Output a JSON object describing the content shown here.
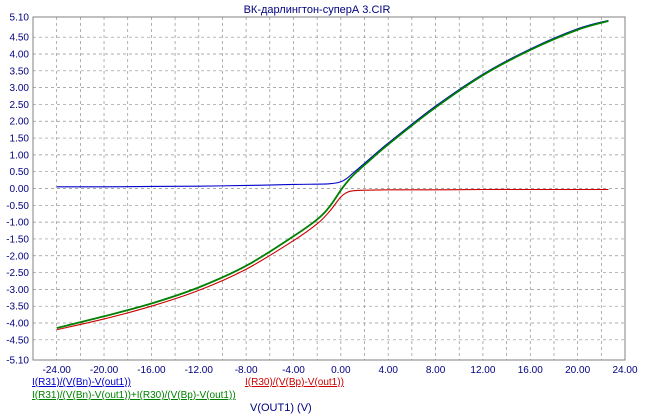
{
  "chart_data": {
    "type": "line",
    "title": "ВК-дарлингтон-суперА 3.CIR",
    "xlabel": "V(OUT1) (V)",
    "ylabel": "",
    "xlim": [
      -26,
      24
    ],
    "ylim": [
      -5.1,
      5.1
    ],
    "x_ticks": [
      "-24.00",
      "-20.00",
      "-16.00",
      "-12.00",
      "-8.00",
      "-4.00",
      "0.00",
      "4.00",
      "8.00",
      "12.00",
      "16.00",
      "20.00",
      "24.00"
    ],
    "x_tick_values": [
      -24,
      -20,
      -16,
      -12,
      -8,
      -4,
      0,
      4,
      8,
      12,
      16,
      20,
      24
    ],
    "y_ticks": [
      "5.10",
      "4.50",
      "4.00",
      "3.50",
      "3.00",
      "2.50",
      "2.00",
      "1.50",
      "1.00",
      "0.50",
      "0.00",
      "-0.50",
      "-1.00",
      "-1.50",
      "-2.00",
      "-2.50",
      "-3.00",
      "-3.50",
      "-4.00",
      "-4.50",
      "-5.10"
    ],
    "y_tick_values": [
      5.1,
      4.5,
      4.0,
      3.5,
      3.0,
      2.5,
      2.0,
      1.5,
      1.0,
      0.5,
      0.0,
      -0.5,
      -1.0,
      -1.5,
      -2.0,
      -2.5,
      -3.0,
      -3.5,
      -4.0,
      -4.5,
      -5.1
    ],
    "grid": true,
    "series": [
      {
        "name": "I(R31)/(V(Bn)-V(out1))",
        "color": "#0000cc",
        "x": [
          -24,
          -20,
          -16,
          -12,
          -8,
          -4,
          -1,
          0,
          0.5,
          1,
          2,
          4,
          8,
          12,
          16,
          20,
          22.6
        ],
        "y": [
          0.05,
          0.05,
          0.06,
          0.07,
          0.09,
          0.12,
          0.14,
          0.2,
          0.3,
          0.45,
          0.75,
          1.35,
          2.45,
          3.4,
          4.15,
          4.75,
          5.0
        ]
      },
      {
        "name": "I(R30)/(V(Bp)-V(out1))",
        "color": "#cc0000",
        "x": [
          -24,
          -20,
          -16,
          -12,
          -8,
          -4,
          -2,
          -1,
          0,
          0.5,
          1,
          2,
          4,
          8,
          12,
          16,
          20,
          22.6
        ],
        "y": [
          -4.2,
          -3.88,
          -3.5,
          -3.03,
          -2.4,
          -1.55,
          -1.05,
          -0.7,
          -0.25,
          -0.12,
          -0.07,
          -0.05,
          -0.04,
          -0.04,
          -0.03,
          -0.03,
          -0.03,
          -0.03
        ]
      },
      {
        "name": "I(R31)/(V(Bn)-V(out1))+I(R30)/(V(Bp)-V(out1))",
        "color": "#008000",
        "x": [
          -24,
          -20,
          -16,
          -12,
          -8,
          -4,
          -2,
          -1,
          0,
          0.5,
          1,
          2,
          4,
          8,
          12,
          16,
          20,
          22.6
        ],
        "y": [
          -4.15,
          -3.8,
          -3.42,
          -2.94,
          -2.3,
          -1.42,
          -0.92,
          -0.56,
          -0.05,
          0.18,
          0.38,
          0.7,
          1.31,
          2.41,
          3.37,
          4.12,
          4.72,
          4.98
        ]
      }
    ],
    "legend_position": "bottom-left"
  }
}
